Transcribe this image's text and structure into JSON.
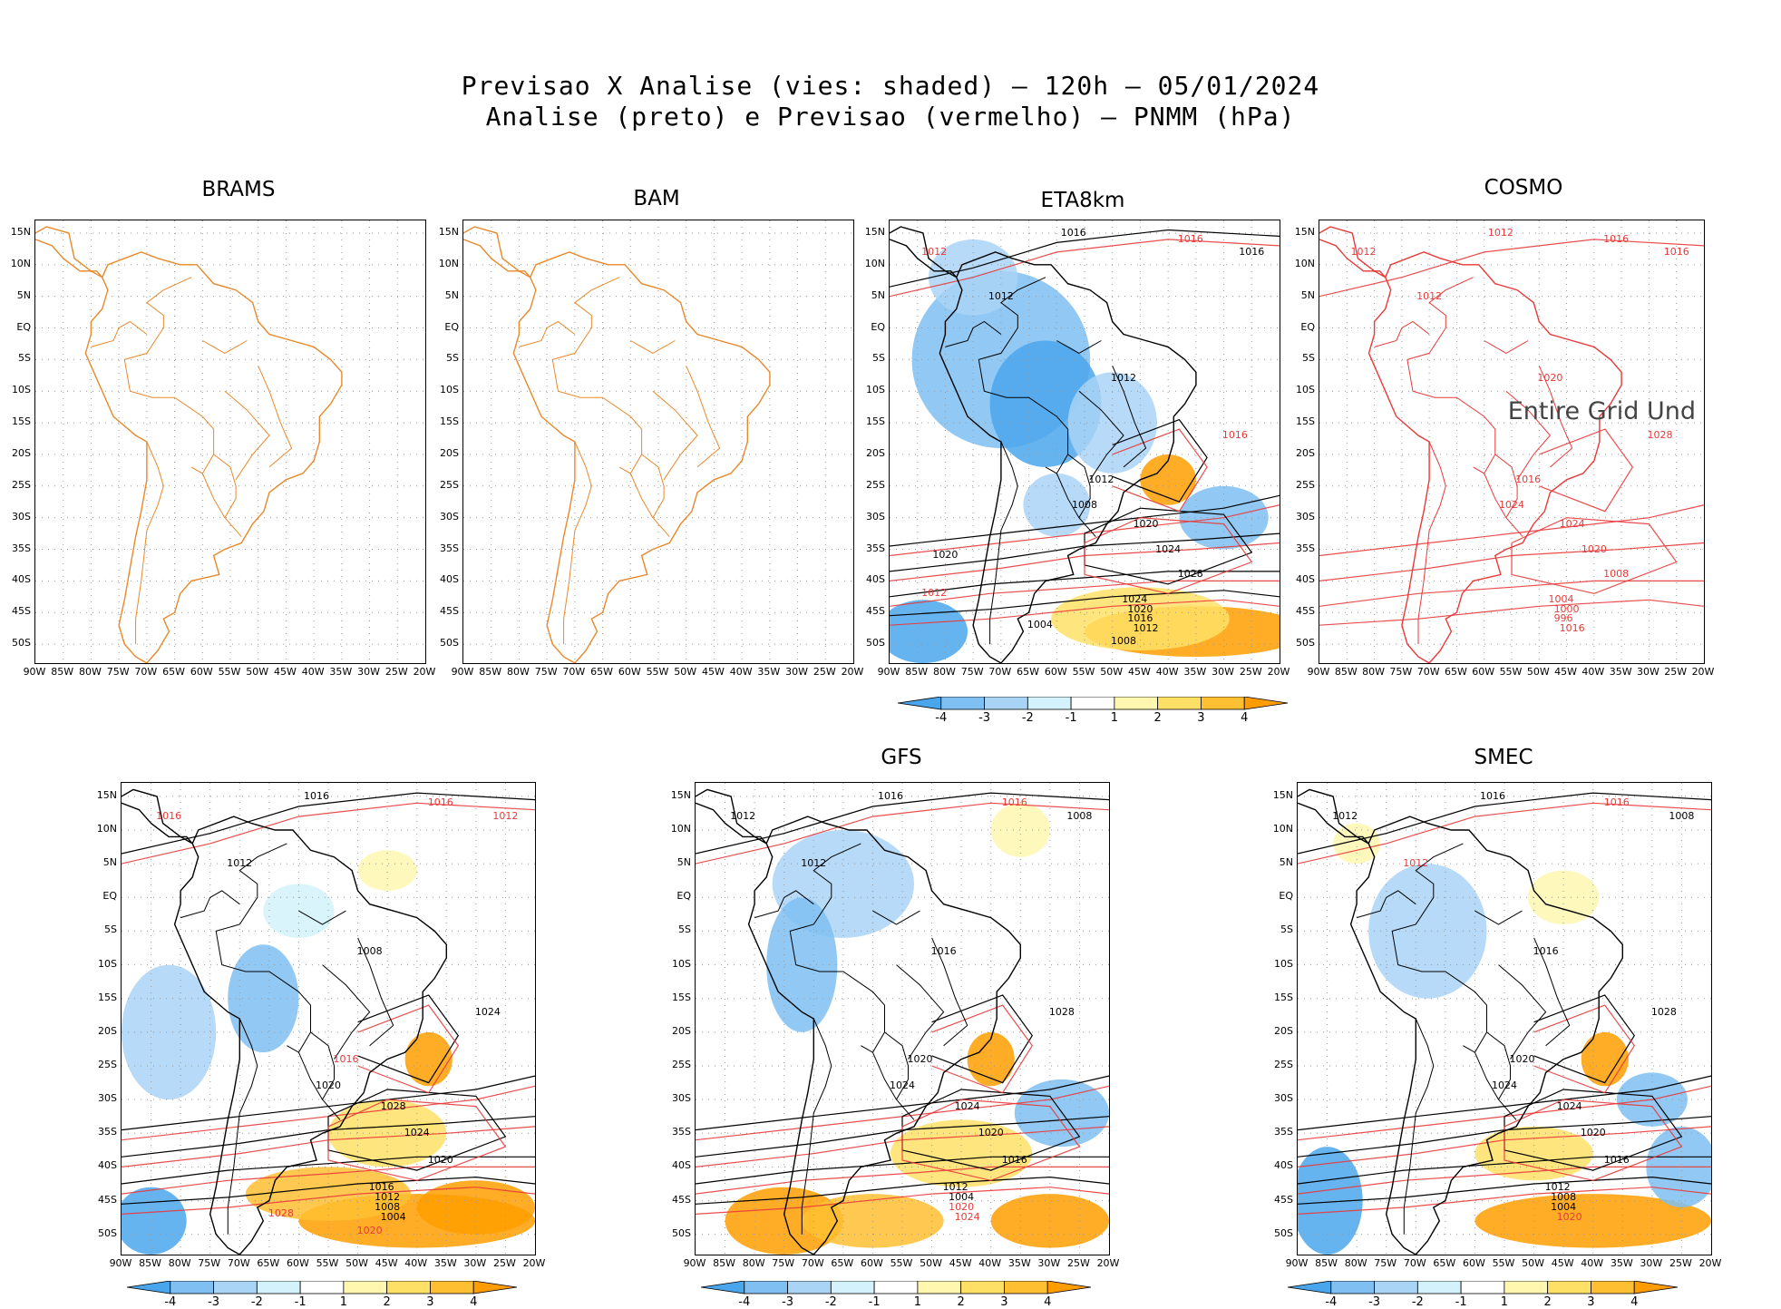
{
  "title": {
    "line1": "Previsao X Analise (vies: shaded) – 120h – 05/01/2024",
    "line2": "Analise (preto) e Previsao (vermelho) – PNMM (hPa)"
  },
  "axes": {
    "lat_labels": [
      "15N",
      "10N",
      "5N",
      "EQ",
      "5S",
      "10S",
      "15S",
      "20S",
      "25S",
      "30S",
      "35S",
      "40S",
      "45S",
      "50S"
    ],
    "lon_labels": [
      "90W",
      "85W",
      "80W",
      "75W",
      "70W",
      "65W",
      "60W",
      "55W",
      "50W",
      "45W",
      "40W",
      "35W",
      "30W",
      "25W",
      "20W"
    ]
  },
  "colorbar": {
    "labels": [
      "-4",
      "-3",
      "-2",
      "-1",
      "1",
      "2",
      "3",
      "4"
    ],
    "colors": [
      "#4aa6ec",
      "#7fbff2",
      "#a9d4f6",
      "#d4f2fb",
      "#ffffff",
      "#fff7b0",
      "#ffe066",
      "#ffbf33",
      "#ff9d00"
    ]
  },
  "colors": {
    "analysis_contour": "#000000",
    "forecast_contour": "#e83a3a",
    "coastline": "#e8892b",
    "grid": "#999999"
  },
  "panels": [
    {
      "id": "brams",
      "name": "BRAMS",
      "note": "",
      "contour_labels": []
    },
    {
      "id": "bam",
      "name": "BAM",
      "note": "",
      "contour_labels": []
    },
    {
      "id": "eta",
      "name": "ETA8km",
      "note": "",
      "contour_labels": [
        {
          "t": "1016",
          "c": "a"
        },
        {
          "t": "1016",
          "c": "f"
        },
        {
          "t": "1012",
          "c": "f"
        },
        {
          "t": "1012",
          "c": "a"
        },
        {
          "t": "1016",
          "c": "a"
        },
        {
          "t": "1012",
          "c": "a"
        },
        {
          "t": "1012",
          "c": "a"
        },
        {
          "t": "1008",
          "c": "a"
        },
        {
          "t": "1016",
          "c": "f"
        },
        {
          "t": "1020",
          "c": "a"
        },
        {
          "t": "1024",
          "c": "a"
        },
        {
          "t": "1028",
          "c": "a"
        },
        {
          "t": "1024",
          "c": "a"
        },
        {
          "t": "1020",
          "c": "a"
        },
        {
          "t": "1016",
          "c": "a"
        },
        {
          "t": "1012",
          "c": "a"
        },
        {
          "t": "1008",
          "c": "a"
        },
        {
          "t": "1004",
          "c": "a"
        },
        {
          "t": "1020",
          "c": "a"
        },
        {
          "t": "1012",
          "c": "f"
        }
      ]
    },
    {
      "id": "cosmo",
      "name": "COSMO",
      "note": "Entire Grid Und",
      "contour_labels": [
        {
          "t": "1012",
          "c": "f"
        },
        {
          "t": "1016",
          "c": "f"
        },
        {
          "t": "1012",
          "c": "f"
        },
        {
          "t": "1012",
          "c": "f"
        },
        {
          "t": "1016",
          "c": "f"
        },
        {
          "t": "1020",
          "c": "f"
        },
        {
          "t": "1016",
          "c": "f"
        },
        {
          "t": "1024",
          "c": "f"
        },
        {
          "t": "1028",
          "c": "f"
        },
        {
          "t": "1024",
          "c": "f"
        },
        {
          "t": "1020",
          "c": "f"
        },
        {
          "t": "1008",
          "c": "f"
        },
        {
          "t": "1004",
          "c": "f"
        },
        {
          "t": "1000",
          "c": "f"
        },
        {
          "t": "996",
          "c": "f"
        },
        {
          "t": "1016",
          "c": "f"
        }
      ]
    },
    {
      "id": "p5",
      "name": "",
      "note": "",
      "contour_labels": [
        {
          "t": "1016",
          "c": "a"
        },
        {
          "t": "1016",
          "c": "f"
        },
        {
          "t": "1016",
          "c": "f"
        },
        {
          "t": "1012",
          "c": "a"
        },
        {
          "t": "1012",
          "c": "f"
        },
        {
          "t": "1008",
          "c": "a"
        },
        {
          "t": "1016",
          "c": "f"
        },
        {
          "t": "1020",
          "c": "a"
        },
        {
          "t": "1024",
          "c": "a"
        },
        {
          "t": "1028",
          "c": "a"
        },
        {
          "t": "1024",
          "c": "a"
        },
        {
          "t": "1020",
          "c": "a"
        },
        {
          "t": "1016",
          "c": "a"
        },
        {
          "t": "1012",
          "c": "a"
        },
        {
          "t": "1008",
          "c": "a"
        },
        {
          "t": "1004",
          "c": "a"
        },
        {
          "t": "1020",
          "c": "f"
        },
        {
          "t": "1028",
          "c": "f"
        }
      ]
    },
    {
      "id": "gfs",
      "name": "GFS",
      "note": "",
      "contour_labels": [
        {
          "t": "1016",
          "c": "a"
        },
        {
          "t": "1016",
          "c": "f"
        },
        {
          "t": "1012",
          "c": "a"
        },
        {
          "t": "1012",
          "c": "a"
        },
        {
          "t": "1008",
          "c": "a"
        },
        {
          "t": "1016",
          "c": "a"
        },
        {
          "t": "1020",
          "c": "a"
        },
        {
          "t": "1024",
          "c": "a"
        },
        {
          "t": "1028",
          "c": "a"
        },
        {
          "t": "1024",
          "c": "a"
        },
        {
          "t": "1020",
          "c": "a"
        },
        {
          "t": "1016",
          "c": "a"
        },
        {
          "t": "1012",
          "c": "a"
        },
        {
          "t": "1004",
          "c": "a"
        },
        {
          "t": "1020",
          "c": "f"
        },
        {
          "t": "1024",
          "c": "f"
        }
      ]
    },
    {
      "id": "smec",
      "name": "SMEC",
      "note": "",
      "contour_labels": [
        {
          "t": "1016",
          "c": "a"
        },
        {
          "t": "1016",
          "c": "f"
        },
        {
          "t": "1012",
          "c": "a"
        },
        {
          "t": "1012",
          "c": "f"
        },
        {
          "t": "1008",
          "c": "a"
        },
        {
          "t": "1016",
          "c": "a"
        },
        {
          "t": "1020",
          "c": "a"
        },
        {
          "t": "1024",
          "c": "a"
        },
        {
          "t": "1028",
          "c": "a"
        },
        {
          "t": "1024",
          "c": "a"
        },
        {
          "t": "1020",
          "c": "a"
        },
        {
          "t": "1016",
          "c": "a"
        },
        {
          "t": "1012",
          "c": "a"
        },
        {
          "t": "1008",
          "c": "a"
        },
        {
          "t": "1004",
          "c": "a"
        },
        {
          "t": "1020",
          "c": "f"
        }
      ]
    }
  ]
}
